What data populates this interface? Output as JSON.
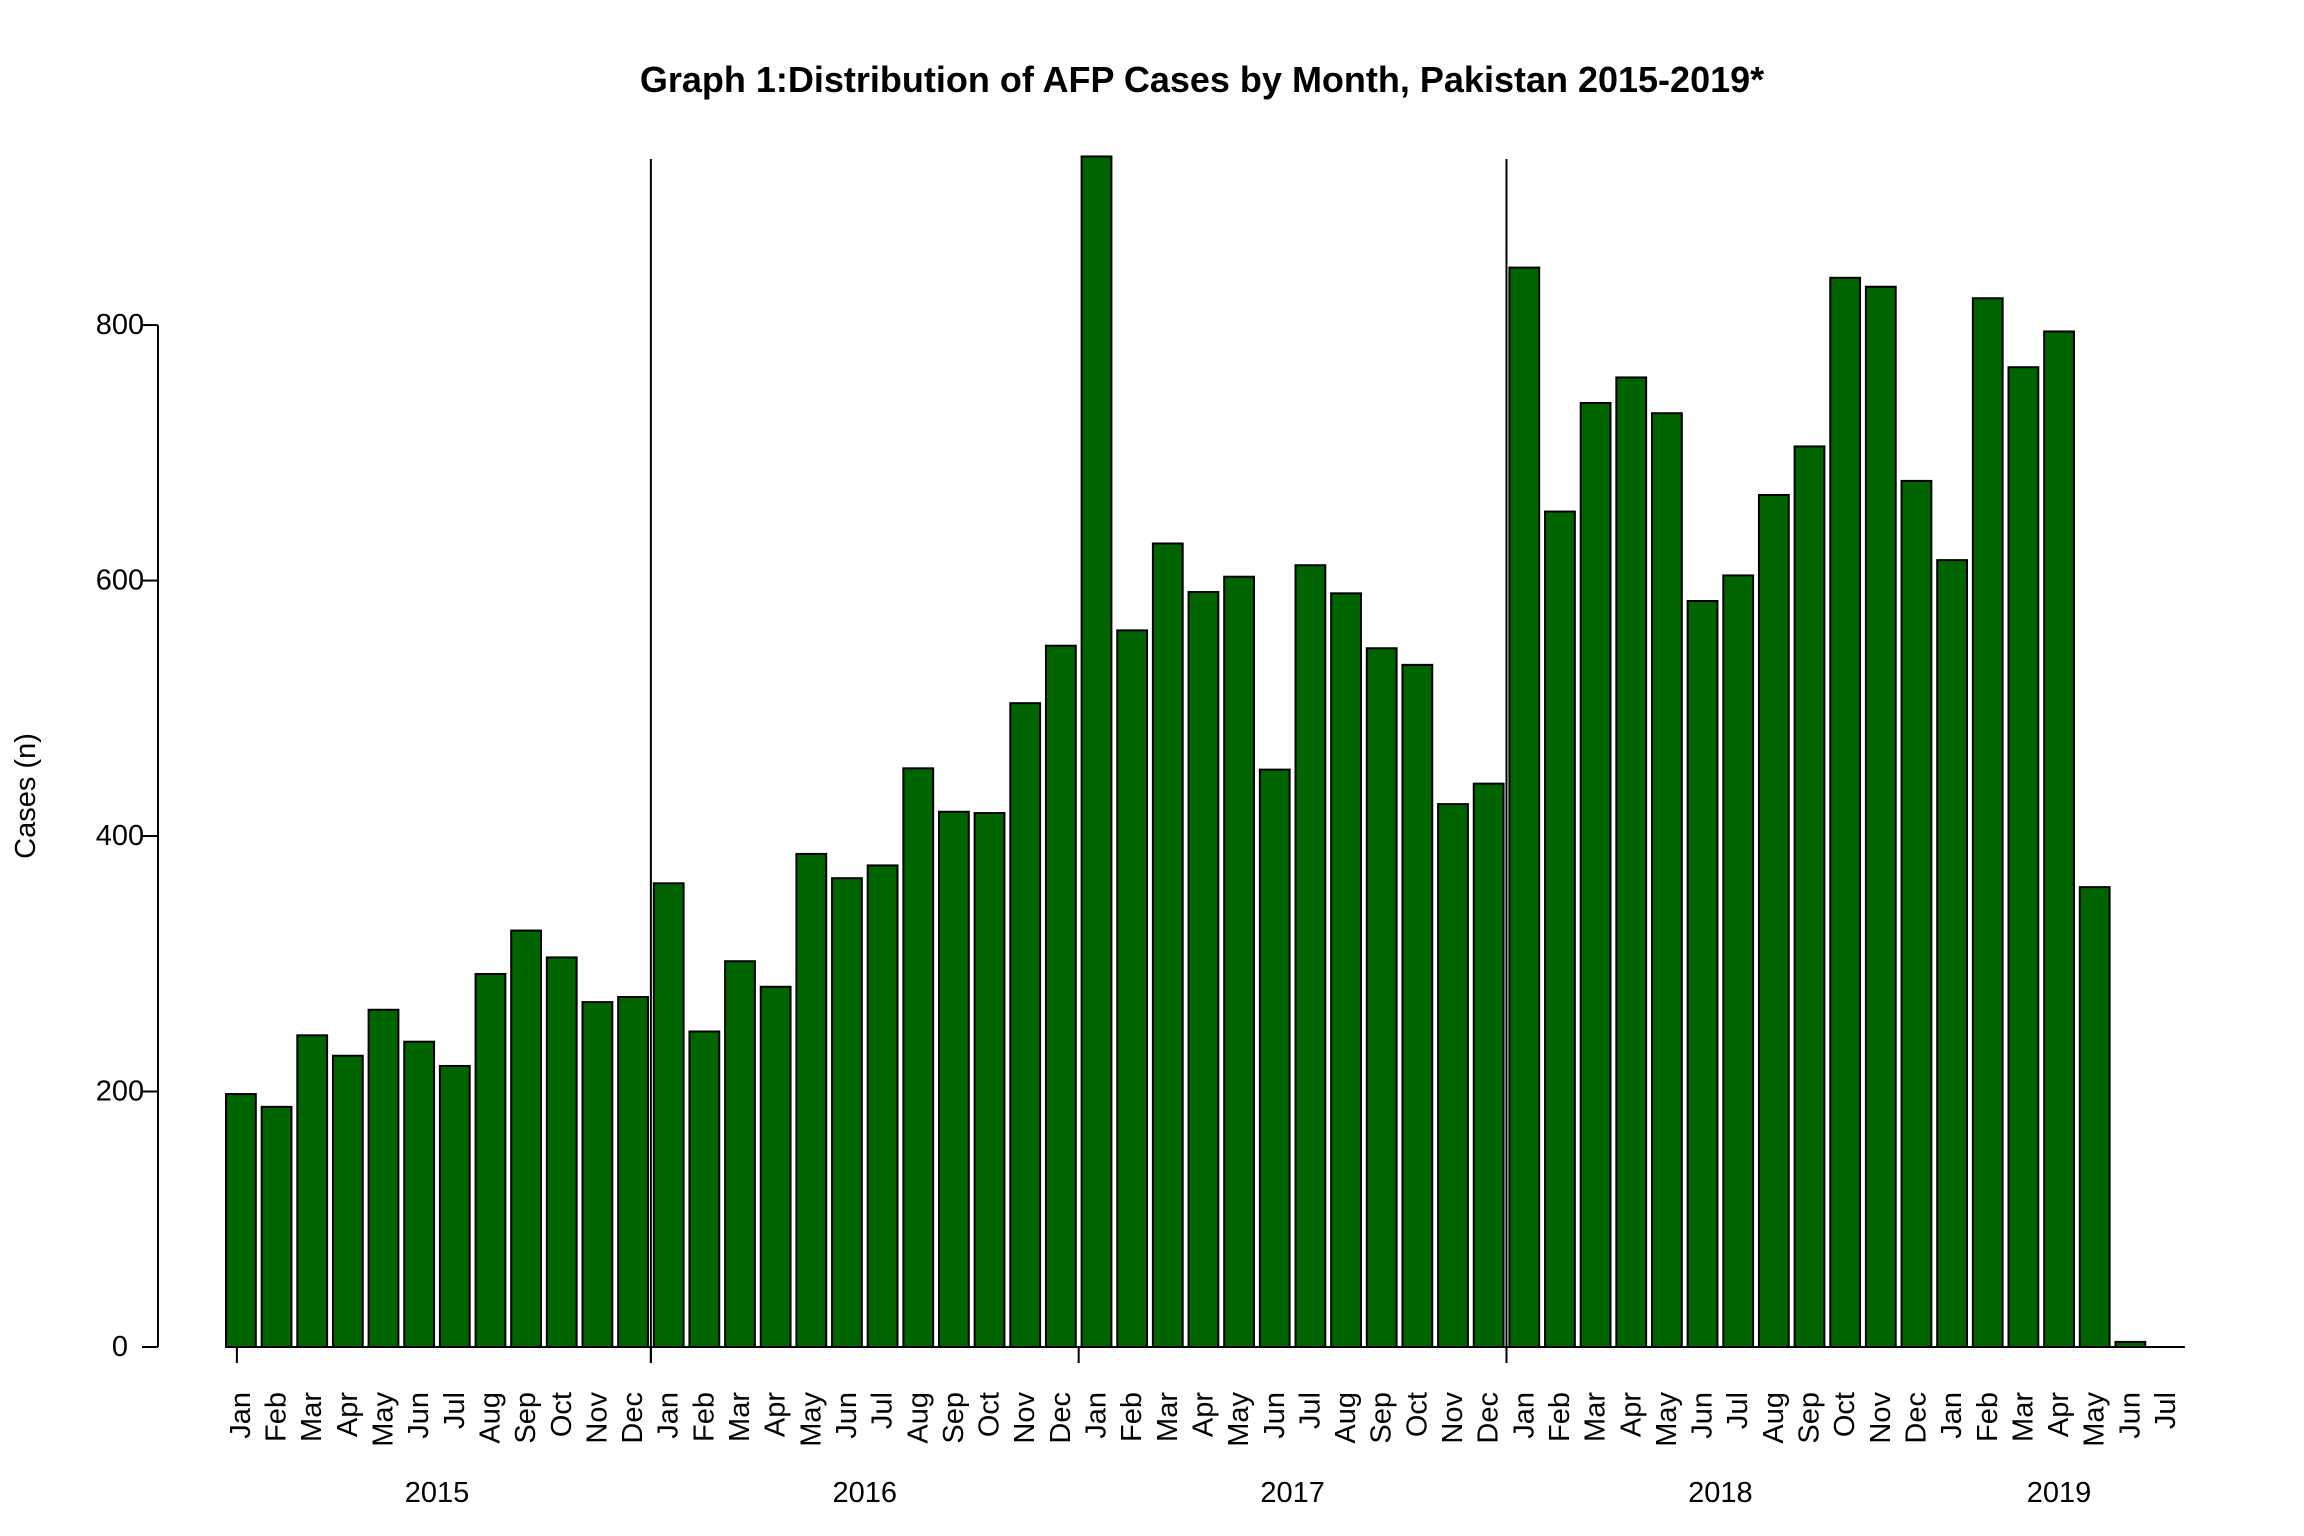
{
  "chart_data": {
    "type": "bar",
    "title": "Graph 1:Distribution of AFP Cases by Month, Pakistan 2015-2019*",
    "xlabel": "",
    "ylabel": "Cases (n)",
    "ylim": [
      0,
      930
    ],
    "yticks": [
      0,
      200,
      400,
      600,
      800
    ],
    "grid": false,
    "legend": "none",
    "bar_color": "#006400",
    "bar_edge_color": "#000000",
    "categories": [
      "Jan",
      "Feb",
      "Mar",
      "Apr",
      "May",
      "Jun",
      "Jul",
      "Aug",
      "Sep",
      "Oct",
      "Nov",
      "Dec",
      "Jan",
      "Feb",
      "Mar",
      "Apr",
      "May",
      "Jun",
      "Jul",
      "Aug",
      "Sep",
      "Oct",
      "Nov",
      "Dec",
      "Jan",
      "Feb",
      "Mar",
      "Apr",
      "May",
      "Jun",
      "Jul",
      "Aug",
      "Sep",
      "Oct",
      "Nov",
      "Dec",
      "Jan",
      "Feb",
      "Mar",
      "Apr",
      "May",
      "Jun",
      "Jul",
      "Aug",
      "Sep",
      "Oct",
      "Nov",
      "Dec",
      "Jan",
      "Feb",
      "Mar",
      "Apr",
      "May",
      "Jun",
      "Jul"
    ],
    "values": [
      198,
      188,
      244,
      228,
      264,
      239,
      220,
      292,
      326,
      305,
      270,
      274,
      363,
      247,
      302,
      282,
      386,
      367,
      377,
      453,
      419,
      418,
      504,
      549,
      932,
      561,
      629,
      591,
      603,
      452,
      612,
      590,
      547,
      534,
      425,
      441,
      845,
      654,
      739,
      759,
      731,
      584,
      604,
      667,
      705,
      837,
      830,
      678,
      616,
      821,
      767,
      795,
      360,
      4,
      0
    ],
    "years": [
      {
        "label": "2015",
        "start_index": 0,
        "end_index": 11
      },
      {
        "label": "2016",
        "start_index": 12,
        "end_index": 23
      },
      {
        "label": "2017",
        "start_index": 24,
        "end_index": 35
      },
      {
        "label": "2018",
        "start_index": 36,
        "end_index": 47
      },
      {
        "label": "2019",
        "start_index": 48,
        "end_index": 54
      }
    ],
    "x_axis_ticks_at_index": [
      12,
      24,
      36
    ],
    "reference_lines_at_index": [
      12,
      36
    ]
  }
}
